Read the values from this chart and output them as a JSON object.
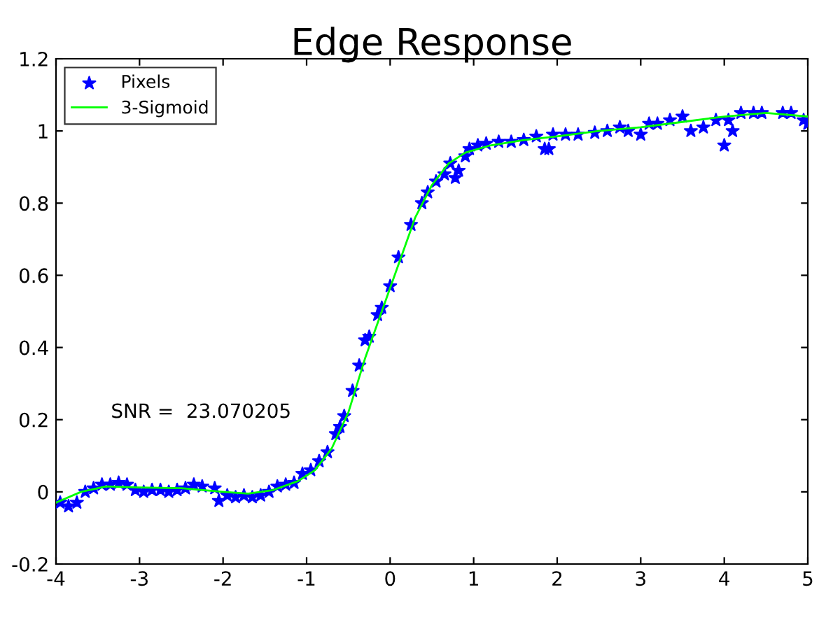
{
  "chart_data": {
    "type": "line",
    "title": "Edge Response",
    "annotations": [
      "SNR =  23.070205"
    ],
    "xlim": [
      -4,
      5
    ],
    "xticks": [
      -4,
      -3,
      -2,
      -1,
      0,
      1,
      2,
      3,
      4,
      5
    ],
    "ylim": [
      -0.2,
      1.2
    ],
    "yticks": [
      -0.2,
      0,
      0.2,
      0.4,
      0.6,
      0.8,
      1,
      1.2
    ],
    "grid": false,
    "legend": "top left",
    "series": [
      {
        "name": "Pixels",
        "type": "scatter",
        "marker": "star",
        "color": "#0000ff",
        "x": [
          -3.95,
          -3.85,
          -3.75,
          -3.65,
          -3.55,
          -3.45,
          -3.35,
          -3.25,
          -3.15,
          -3.05,
          -2.95,
          -2.85,
          -2.75,
          -2.65,
          -2.55,
          -2.45,
          -2.35,
          -2.25,
          -2.1,
          -2.05,
          -1.95,
          -1.85,
          -1.75,
          -1.65,
          -1.55,
          -1.45,
          -1.35,
          -1.25,
          -1.15,
          -1.05,
          -0.95,
          -0.85,
          -0.75,
          -0.65,
          -0.6,
          -0.55,
          -0.45,
          -0.37,
          -0.3,
          -0.25,
          -0.15,
          -0.1,
          0.0,
          0.1,
          0.25,
          0.38,
          0.45,
          0.55,
          0.65,
          0.72,
          0.78,
          0.82,
          0.9,
          0.95,
          1.05,
          1.15,
          1.3,
          1.45,
          1.6,
          1.75,
          1.85,
          1.9,
          1.95,
          2.1,
          2.25,
          2.45,
          2.6,
          2.75,
          2.85,
          3.0,
          3.1,
          3.2,
          3.35,
          3.5,
          3.6,
          3.75,
          3.9,
          4.0,
          4.05,
          4.1,
          4.2,
          4.35,
          4.45,
          4.7,
          4.8,
          4.95,
          5.0
        ],
        "values": [
          -0.03,
          -0.04,
          -0.03,
          0.0,
          0.01,
          0.02,
          0.02,
          0.025,
          0.02,
          0.005,
          0.0,
          0.005,
          0.005,
          0.0,
          0.005,
          0.01,
          0.02,
          0.015,
          0.01,
          -0.025,
          -0.01,
          -0.015,
          -0.01,
          -0.015,
          -0.01,
          0.0,
          0.015,
          0.02,
          0.025,
          0.05,
          0.06,
          0.085,
          0.11,
          0.16,
          0.18,
          0.21,
          0.28,
          0.35,
          0.42,
          0.43,
          0.49,
          0.51,
          0.57,
          0.65,
          0.74,
          0.8,
          0.83,
          0.86,
          0.88,
          0.91,
          0.87,
          0.89,
          0.93,
          0.95,
          0.96,
          0.965,
          0.97,
          0.97,
          0.975,
          0.985,
          0.95,
          0.95,
          0.99,
          0.99,
          0.99,
          0.995,
          1.0,
          1.01,
          1.0,
          0.99,
          1.02,
          1.02,
          1.03,
          1.04,
          1.0,
          1.01,
          1.03,
          0.96,
          1.03,
          1.0,
          1.05,
          1.05,
          1.05,
          1.05,
          1.05,
          1.03,
          1.02
        ]
      },
      {
        "name": "3-Sigmoid",
        "marker": "none",
        "line_style": "solid",
        "color": "#00ff00",
        "x": [
          -4,
          -3.7,
          -3.4,
          -3.0,
          -2.5,
          -2.0,
          -1.7,
          -1.4,
          -1.1,
          -0.9,
          -0.7,
          -0.5,
          -0.3,
          -0.1,
          0.1,
          0.3,
          0.5,
          0.7,
          0.9,
          1.2,
          1.6,
          2.0,
          2.5,
          3.0,
          3.5,
          4.0,
          4.5,
          5.0
        ],
        "values": [
          -0.03,
          0.0,
          0.015,
          0.012,
          0.01,
          0.0,
          -0.005,
          0.005,
          0.03,
          0.06,
          0.12,
          0.22,
          0.37,
          0.5,
          0.63,
          0.76,
          0.85,
          0.91,
          0.94,
          0.96,
          0.975,
          0.985,
          1.0,
          1.01,
          1.025,
          1.04,
          1.05,
          1.04
        ]
      }
    ]
  }
}
